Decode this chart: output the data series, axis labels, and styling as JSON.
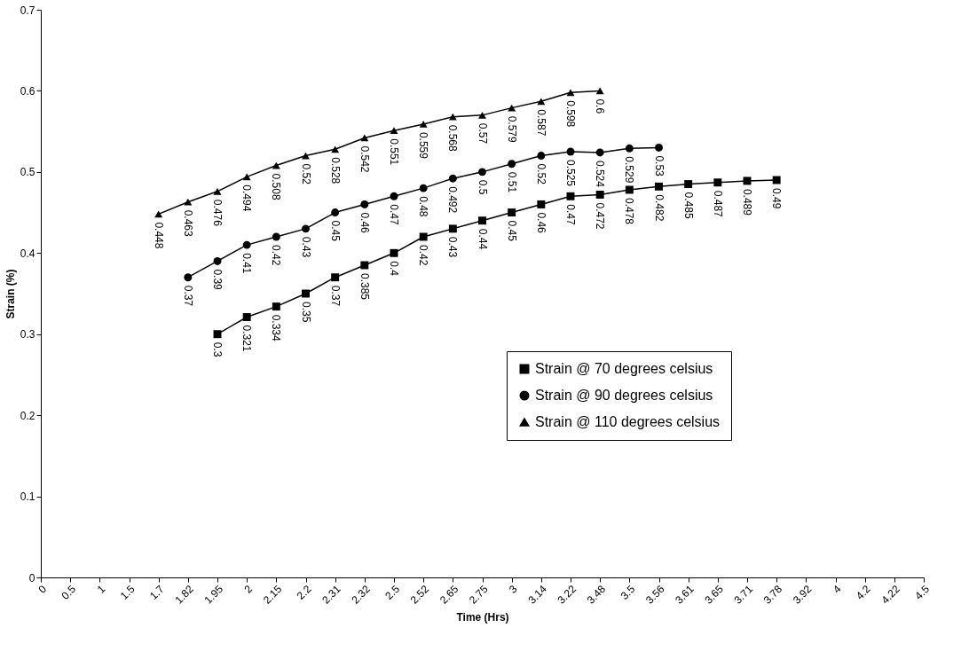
{
  "chart_data": {
    "type": "line",
    "xlabel": "Time (Hrs)",
    "ylabel": "Strain (%)",
    "categories": [
      "0",
      "0.5",
      "1",
      "1.5",
      "1.7",
      "1.82",
      "1.95",
      "2",
      "2.15",
      "2.2",
      "2.31",
      "2.32",
      "2.5",
      "2.52",
      "2.65",
      "2.75",
      "3",
      "3.14",
      "3.22",
      "3.48",
      "3.5",
      "3.56",
      "3.61",
      "3.65",
      "3.71",
      "3.78",
      "3.92",
      "4",
      "4.2",
      "4.22",
      "4.5"
    ],
    "series": [
      {
        "name": "Strain @ 70 degrees celsius",
        "color": "#000000",
        "marker": "square",
        "values": [
          null,
          null,
          null,
          null,
          null,
          null,
          0.3,
          0.321,
          0.334,
          0.35,
          0.37,
          0.385,
          0.4,
          0.42,
          0.43,
          0.44,
          0.45,
          0.46,
          0.47,
          0.472,
          0.478,
          0.482,
          0.485,
          0.487,
          0.489,
          0.49,
          null,
          null,
          null,
          null,
          null
        ]
      },
      {
        "name": "Strain @ 90 degrees celsius",
        "color": "#000000",
        "marker": "circle",
        "values": [
          null,
          null,
          null,
          null,
          null,
          0.37,
          0.39,
          0.41,
          0.42,
          0.43,
          0.45,
          0.46,
          0.47,
          0.48,
          0.492,
          0.5,
          0.51,
          0.52,
          0.525,
          0.524,
          0.529,
          0.53,
          null,
          null,
          null,
          null,
          null,
          null,
          null,
          null,
          null
        ]
      },
      {
        "name": "Strain @ 110 degrees celsius",
        "color": "#000000",
        "marker": "triangle",
        "values": [
          null,
          null,
          null,
          null,
          0.448,
          0.463,
          0.476,
          0.494,
          0.508,
          0.52,
          0.528,
          0.542,
          0.551,
          0.559,
          0.568,
          0.57,
          0.579,
          0.587,
          0.598,
          0.6,
          null,
          null,
          null,
          null,
          null,
          null,
          null,
          null,
          null,
          null,
          null
        ]
      }
    ],
    "ylim": [
      0,
      0.7
    ],
    "yticks": [
      0,
      0.1,
      0.2,
      0.3,
      0.4,
      0.5,
      0.6,
      0.7
    ],
    "grid": false,
    "legend": "bottom right",
    "data_labels": true,
    "line_style": "solid"
  }
}
